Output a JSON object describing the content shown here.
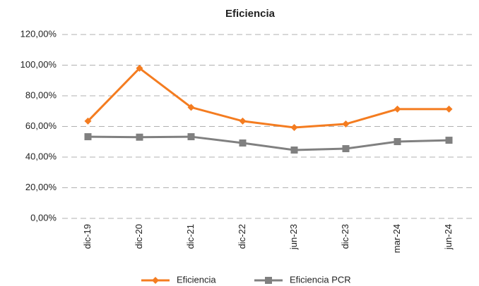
{
  "chart_data": {
    "type": "line",
    "title": "Eficiencia",
    "categories": [
      "dic-19",
      "dic-20",
      "dic-21",
      "dic-22",
      "jun-23",
      "dic-23",
      "mar-24",
      "jun-24"
    ],
    "series": [
      {
        "name": "Eficiencia",
        "color": "#f47c20",
        "marker": "diamond",
        "values": [
          63.5,
          98,
          72.5,
          63.5,
          59.3,
          61.6,
          71.3,
          71.3
        ]
      },
      {
        "name": "Eficiencia PCR",
        "color": "#808080",
        "marker": "square",
        "values": [
          53.3,
          53,
          53.3,
          49.2,
          44.6,
          45.5,
          50.1,
          51
        ]
      }
    ],
    "ylim": [
      0,
      120
    ],
    "yticks": [
      {
        "value": 0,
        "label": "0,00%"
      },
      {
        "value": 20,
        "label": "20,00%"
      },
      {
        "value": 40,
        "label": "40,00%"
      },
      {
        "value": 60,
        "label": "60,00%"
      },
      {
        "value": 80,
        "label": "80,00%"
      },
      {
        "value": 100,
        "label": "100,00%"
      },
      {
        "value": 120,
        "label": "120,00%"
      }
    ],
    "grid": true,
    "legend": "bottom"
  }
}
